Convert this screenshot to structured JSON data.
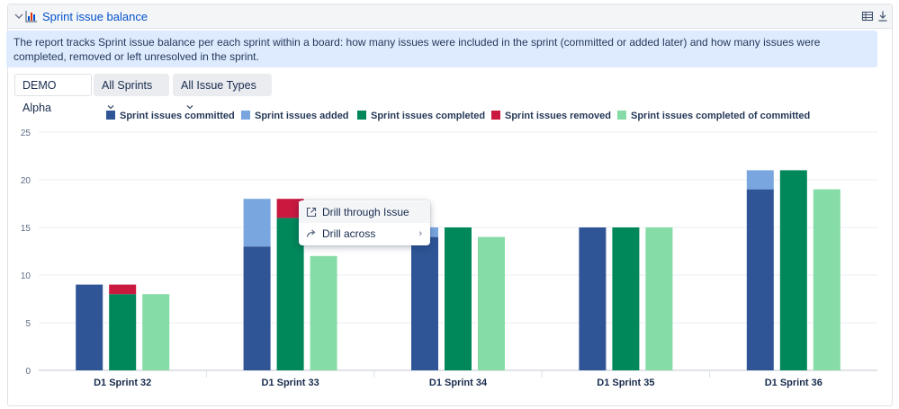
{
  "header": {
    "title": "Sprint issue balance",
    "table_view_icon": "table-icon",
    "export_icon": "download-icon"
  },
  "description": "The report tracks Sprint issue balance per each sprint within a board: how many issues were included in the sprint (committed or added later) and how many issues were completed, removed or left unresolved in the sprint.",
  "filters": {
    "board": "DEMO Alpha",
    "sprints": "All Sprints",
    "issue_types": "All Issue Types"
  },
  "context_menu": {
    "items": [
      {
        "label": "Drill through Issue",
        "icon": "external-link-icon"
      },
      {
        "label": "Drill across",
        "icon": "share-arrow-icon"
      }
    ]
  },
  "colors": {
    "committed": "#2f5597",
    "added": "#7aa6e0",
    "completed": "#00875a",
    "removed": "#c9193f",
    "completed_of_committed": "#86dca6",
    "link": "#0052cc"
  },
  "chart_data": {
    "type": "bar",
    "title": "Sprint issue balance",
    "categories": [
      "D1 Sprint 32",
      "D1 Sprint 33",
      "D1 Sprint 34",
      "D1 Sprint 35",
      "D1 Sprint 36"
    ],
    "ylim": [
      0,
      25
    ],
    "yticks": [
      0,
      5,
      10,
      15,
      20,
      25
    ],
    "legend_position": "top",
    "legend": [
      "Sprint issues committed",
      "Sprint issues added",
      "Sprint issues completed",
      "Sprint issues removed",
      "Sprint issues completed of committed"
    ],
    "series": [
      {
        "name": "Sprint issues committed",
        "stack": "included",
        "values": [
          9,
          13,
          14,
          15,
          19
        ]
      },
      {
        "name": "Sprint issues added",
        "stack": "included",
        "values": [
          0,
          5,
          1,
          0,
          2
        ]
      },
      {
        "name": "Sprint issues completed",
        "stack": "resolved",
        "values": [
          8,
          16,
          15,
          15,
          21
        ]
      },
      {
        "name": "Sprint issues removed",
        "stack": "resolved",
        "values": [
          1,
          2,
          0,
          0,
          0
        ]
      },
      {
        "name": "Sprint issues completed of committed",
        "stack": "completed_of_committed",
        "values": [
          8,
          12,
          14,
          15,
          19
        ]
      }
    ]
  }
}
